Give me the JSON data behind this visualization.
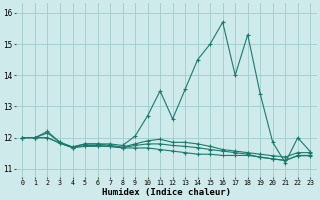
{
  "title": "",
  "xlabel": "Humidex (Indice chaleur)",
  "background_color": "#ceeaea",
  "grid_color": "#a0cccc",
  "line_color": "#1a7a6e",
  "x": [
    0,
    1,
    2,
    3,
    4,
    5,
    6,
    7,
    8,
    9,
    10,
    11,
    12,
    13,
    14,
    15,
    16,
    17,
    18,
    19,
    20,
    21,
    22,
    23
  ],
  "series": [
    [
      12.0,
      12.0,
      12.2,
      11.85,
      11.7,
      11.8,
      11.8,
      11.8,
      11.75,
      12.05,
      12.7,
      13.5,
      12.6,
      13.55,
      14.5,
      15.0,
      15.7,
      14.0,
      15.3,
      13.4,
      11.85,
      11.2,
      12.0,
      11.55
    ],
    [
      12.0,
      12.0,
      12.15,
      11.85,
      11.7,
      11.8,
      11.8,
      11.75,
      11.7,
      11.8,
      11.9,
      11.95,
      11.85,
      11.85,
      11.8,
      11.72,
      11.62,
      11.57,
      11.52,
      11.47,
      11.42,
      11.38,
      11.52,
      11.52
    ],
    [
      12.0,
      12.0,
      12.0,
      11.82,
      11.68,
      11.75,
      11.75,
      11.72,
      11.68,
      11.75,
      11.8,
      11.8,
      11.75,
      11.72,
      11.68,
      11.62,
      11.57,
      11.52,
      11.47,
      11.37,
      11.32,
      11.27,
      11.43,
      11.43
    ],
    [
      12.0,
      12.0,
      12.0,
      11.82,
      11.68,
      11.72,
      11.72,
      11.72,
      11.67,
      11.67,
      11.67,
      11.62,
      11.57,
      11.52,
      11.47,
      11.47,
      11.43,
      11.43,
      11.43,
      11.38,
      11.32,
      11.27,
      11.42,
      11.42
    ]
  ],
  "ylim": [
    10.75,
    16.3
  ],
  "yticks": [
    11,
    12,
    13,
    14,
    15,
    16
  ],
  "xticks": [
    0,
    1,
    2,
    3,
    4,
    5,
    6,
    7,
    8,
    9,
    10,
    11,
    12,
    13,
    14,
    15,
    16,
    17,
    18,
    19,
    20,
    21,
    22,
    23
  ],
  "marker": "+",
  "markersize": 3,
  "linewidth": 0.8
}
